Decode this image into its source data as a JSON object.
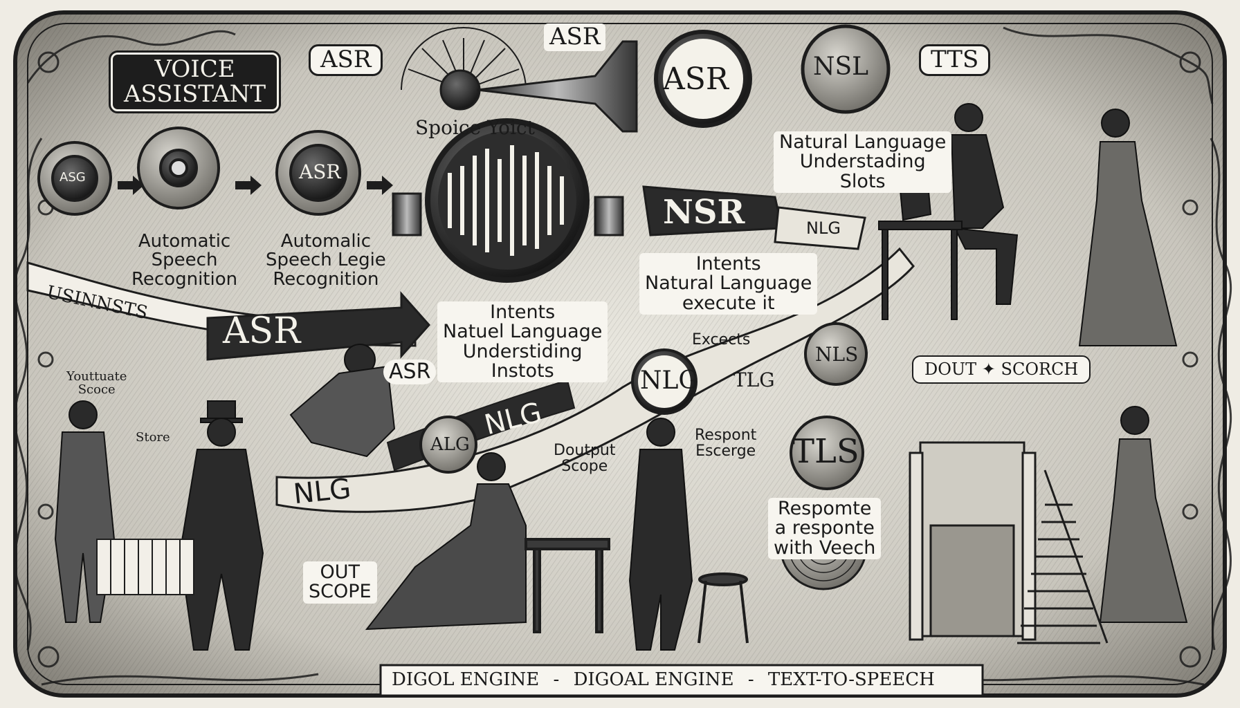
{
  "title": {
    "line1": "VOICE",
    "line2": "ASSISTANT"
  },
  "badges": {
    "asr_top_left": "ASR",
    "asr_top_center": "ASR",
    "asr_horn_disc": "ASR",
    "nsl_disc": "NSL",
    "tts_top_right": "TTS",
    "gear1": "ASG",
    "gear3": "ASR",
    "nsr_banner": "NSR",
    "nlg_banner_right": "NLG",
    "asr_big_arrow": "ASR",
    "asr_small": "ASR",
    "nlg_disc": "NLG",
    "tlg_disc": "TLG",
    "nls_disc": "NLS",
    "alg_disc": "ALG",
    "nlg_ribbon_mid": "NLG",
    "nlg_ribbon_low": "NLG",
    "tts_disc": "TLS"
  },
  "labels": {
    "spoice": "Spoice Yoict",
    "nlu_top": [
      "Natural Language",
      "Understading",
      "Slots"
    ],
    "asr_text1": [
      "Automatic",
      "Speech",
      "Recognition"
    ],
    "asr_text2": [
      "Automalic",
      "Speech Legie",
      "Recognition"
    ],
    "intents_mid": [
      "Intents",
      "Natural Language",
      "execute it"
    ],
    "intents_center": [
      "Intents",
      "Natuel Language",
      "Understiding",
      "Instots"
    ],
    "excects": "Excects",
    "ribbon_left": "USINNSTS",
    "output_score": [
      "Youttuate",
      "Scoce"
    ],
    "store": "Store",
    "dout_scorch": "DOUT ✦ SCORCH",
    "respont": [
      "Respont",
      "Escerge"
    ],
    "output_scope": [
      "Doutput",
      "Scope"
    ],
    "response": [
      "Respomte",
      "a responte",
      "with Veech"
    ],
    "out_scope": [
      "OUT",
      "SCOPE"
    ]
  },
  "footer": [
    "DIGOL ENGINE",
    "DIGOAL ENGINE",
    "TEXT-TO-SPEECH"
  ],
  "footer_sep": "-",
  "colors": {
    "ink": "#1d1d1d",
    "paper": "#efece4",
    "shade": "#8a8880",
    "light": "#f7f5ef"
  }
}
